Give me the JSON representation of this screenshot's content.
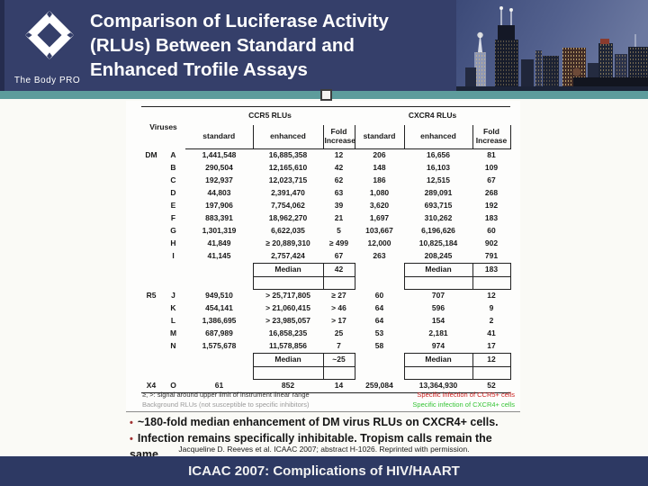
{
  "header": {
    "logo_text": "The Body PRO",
    "title_lines": [
      "Comparison of Luciferase Activity",
      "(RLUs) Between Standard and",
      "Enhanced Trofile Assays"
    ]
  },
  "colors": {
    "header_navy": "#353f6a",
    "banner_navy": "#2d3963",
    "teal_strip": "#5d9c9c",
    "ccr5_red": "#cc1f1f",
    "cxcr4_green": "#35c435",
    "dm_blue": "#2a35c8"
  },
  "table": {
    "viruses_header": "Viruses",
    "ccr5_header": "CCR5 RLUs",
    "cxcr4_header": "CXCR4 RLUs",
    "sub_headers": [
      "standard",
      "enhanced",
      "Fold Increase",
      "standard",
      "enhanced",
      "Fold Increase"
    ],
    "rows": [
      {
        "type": "data",
        "group": "DM",
        "groupClass": "blue",
        "letter": "A",
        "cells": [
          "1,441,548",
          "16,885,358",
          "12",
          "206",
          "16,656",
          "81"
        ],
        "ccr5Class": "red",
        "cxcr4Class": "green"
      },
      {
        "type": "data",
        "group": "",
        "letter": "B",
        "cells": [
          "290,504",
          "12,165,610",
          "42",
          "148",
          "16,103",
          "109"
        ],
        "ccr5Class": "red",
        "cxcr4Class": "green"
      },
      {
        "type": "data",
        "group": "",
        "letter": "C",
        "cells": [
          "192,937",
          "12,023,715",
          "62",
          "186",
          "12,515",
          "67"
        ],
        "ccr5Class": "red",
        "cxcr4Class": "green"
      },
      {
        "type": "data",
        "group": "",
        "letter": "D",
        "cells": [
          "44,803",
          "2,391,470",
          "63",
          "1,080",
          "289,091",
          "268"
        ],
        "ccr5Class": "red",
        "cxcr4Class": "green"
      },
      {
        "type": "data",
        "group": "",
        "letter": "E",
        "cells": [
          "197,906",
          "7,754,062",
          "39",
          "3,620",
          "693,715",
          "192"
        ],
        "ccr5Class": "red",
        "cxcr4Class": "green"
      },
      {
        "type": "data",
        "group": "",
        "letter": "F",
        "cells": [
          "883,391",
          "18,962,270",
          "21",
          "1,697",
          "310,262",
          "183"
        ],
        "ccr5Class": "red",
        "cxcr4Class": "green"
      },
      {
        "type": "data",
        "group": "",
        "letter": "G",
        "cells": [
          "1,301,319",
          "6,622,035",
          "5",
          "103,667",
          "6,196,626",
          "60"
        ],
        "ccr5Class": "red",
        "cxcr4Class": "green"
      },
      {
        "type": "data",
        "group": "",
        "letter": "H",
        "cells": [
          "41,849",
          "≥ 20,889,310",
          "≥ 499",
          "12,000",
          "10,825,184",
          "902"
        ],
        "ccr5Class": "red",
        "cxcr4Class": "green"
      },
      {
        "type": "data",
        "group": "",
        "letter": "I",
        "cells": [
          "41,145",
          "2,757,424",
          "67",
          "263",
          "208,245",
          "791"
        ],
        "ccr5Class": "red",
        "cxcr4Class": "green"
      },
      {
        "type": "median",
        "label": "Median",
        "ccr5": "42",
        "cxcr4": "183"
      },
      {
        "type": "spacer"
      },
      {
        "type": "data",
        "group": "R5",
        "groupClass": "red",
        "letter": "J",
        "cells": [
          "949,510",
          "> 25,717,805",
          "≥ 27",
          "60",
          "707",
          "12"
        ],
        "ccr5Class": "red",
        "cxcr4Class": "gray"
      },
      {
        "type": "data",
        "group": "",
        "letter": "K",
        "cells": [
          "454,141",
          "> 21,060,415",
          "> 46",
          "64",
          "596",
          "9"
        ],
        "ccr5Class": "red",
        "cxcr4Class": "gray"
      },
      {
        "type": "data",
        "group": "",
        "letter": "L",
        "cells": [
          "1,386,695",
          "> 23,985,057",
          "> 17",
          "64",
          "154",
          "2"
        ],
        "ccr5Class": "red",
        "cxcr4Class": "gray"
      },
      {
        "type": "data",
        "group": "",
        "letter": "M",
        "cells": [
          "687,989",
          "16,858,235",
          "25",
          "53",
          "2,181",
          "41"
        ],
        "ccr5Class": "red",
        "cxcr4Class": "gray"
      },
      {
        "type": "data",
        "group": "",
        "letter": "N",
        "cells": [
          "1,575,678",
          "11,578,856",
          "7",
          "58",
          "974",
          "17"
        ],
        "ccr5Class": "red",
        "cxcr4Class": "gray"
      },
      {
        "type": "median",
        "label": "Median",
        "ccr5": "~25",
        "cxcr4": "12"
      },
      {
        "type": "spacer"
      },
      {
        "type": "data",
        "group": "X4",
        "groupClass": "green",
        "letter": "O",
        "cells": [
          "61",
          "852",
          "14",
          "259,084",
          "13,364,930",
          "52"
        ],
        "ccr5Class": "black",
        "cxcr4Class": "green"
      }
    ]
  },
  "legend": {
    "note1": "≥, >: signal around upper limit of instrument linear range",
    "note2": "Background RLUs (not susceptible to specific inhibitors)",
    "ccr5_note": "Specific infection of CCR5+ cells",
    "cxcr4_note": "Specific infection of CXCR4+ cells"
  },
  "bullets": [
    "~180-fold median enhancement of DM virus RLUs on CXCR4+ cells.",
    "Infection remains specifically inhibitable. Tropism calls remain the same."
  ],
  "citation": "Jacqueline D. Reeves et al. ICAAC 2007; abstract H-1026. Reprinted with permission.",
  "footer": {
    "banner": "ICAAC 2007: Complications of HIV/HAART"
  }
}
